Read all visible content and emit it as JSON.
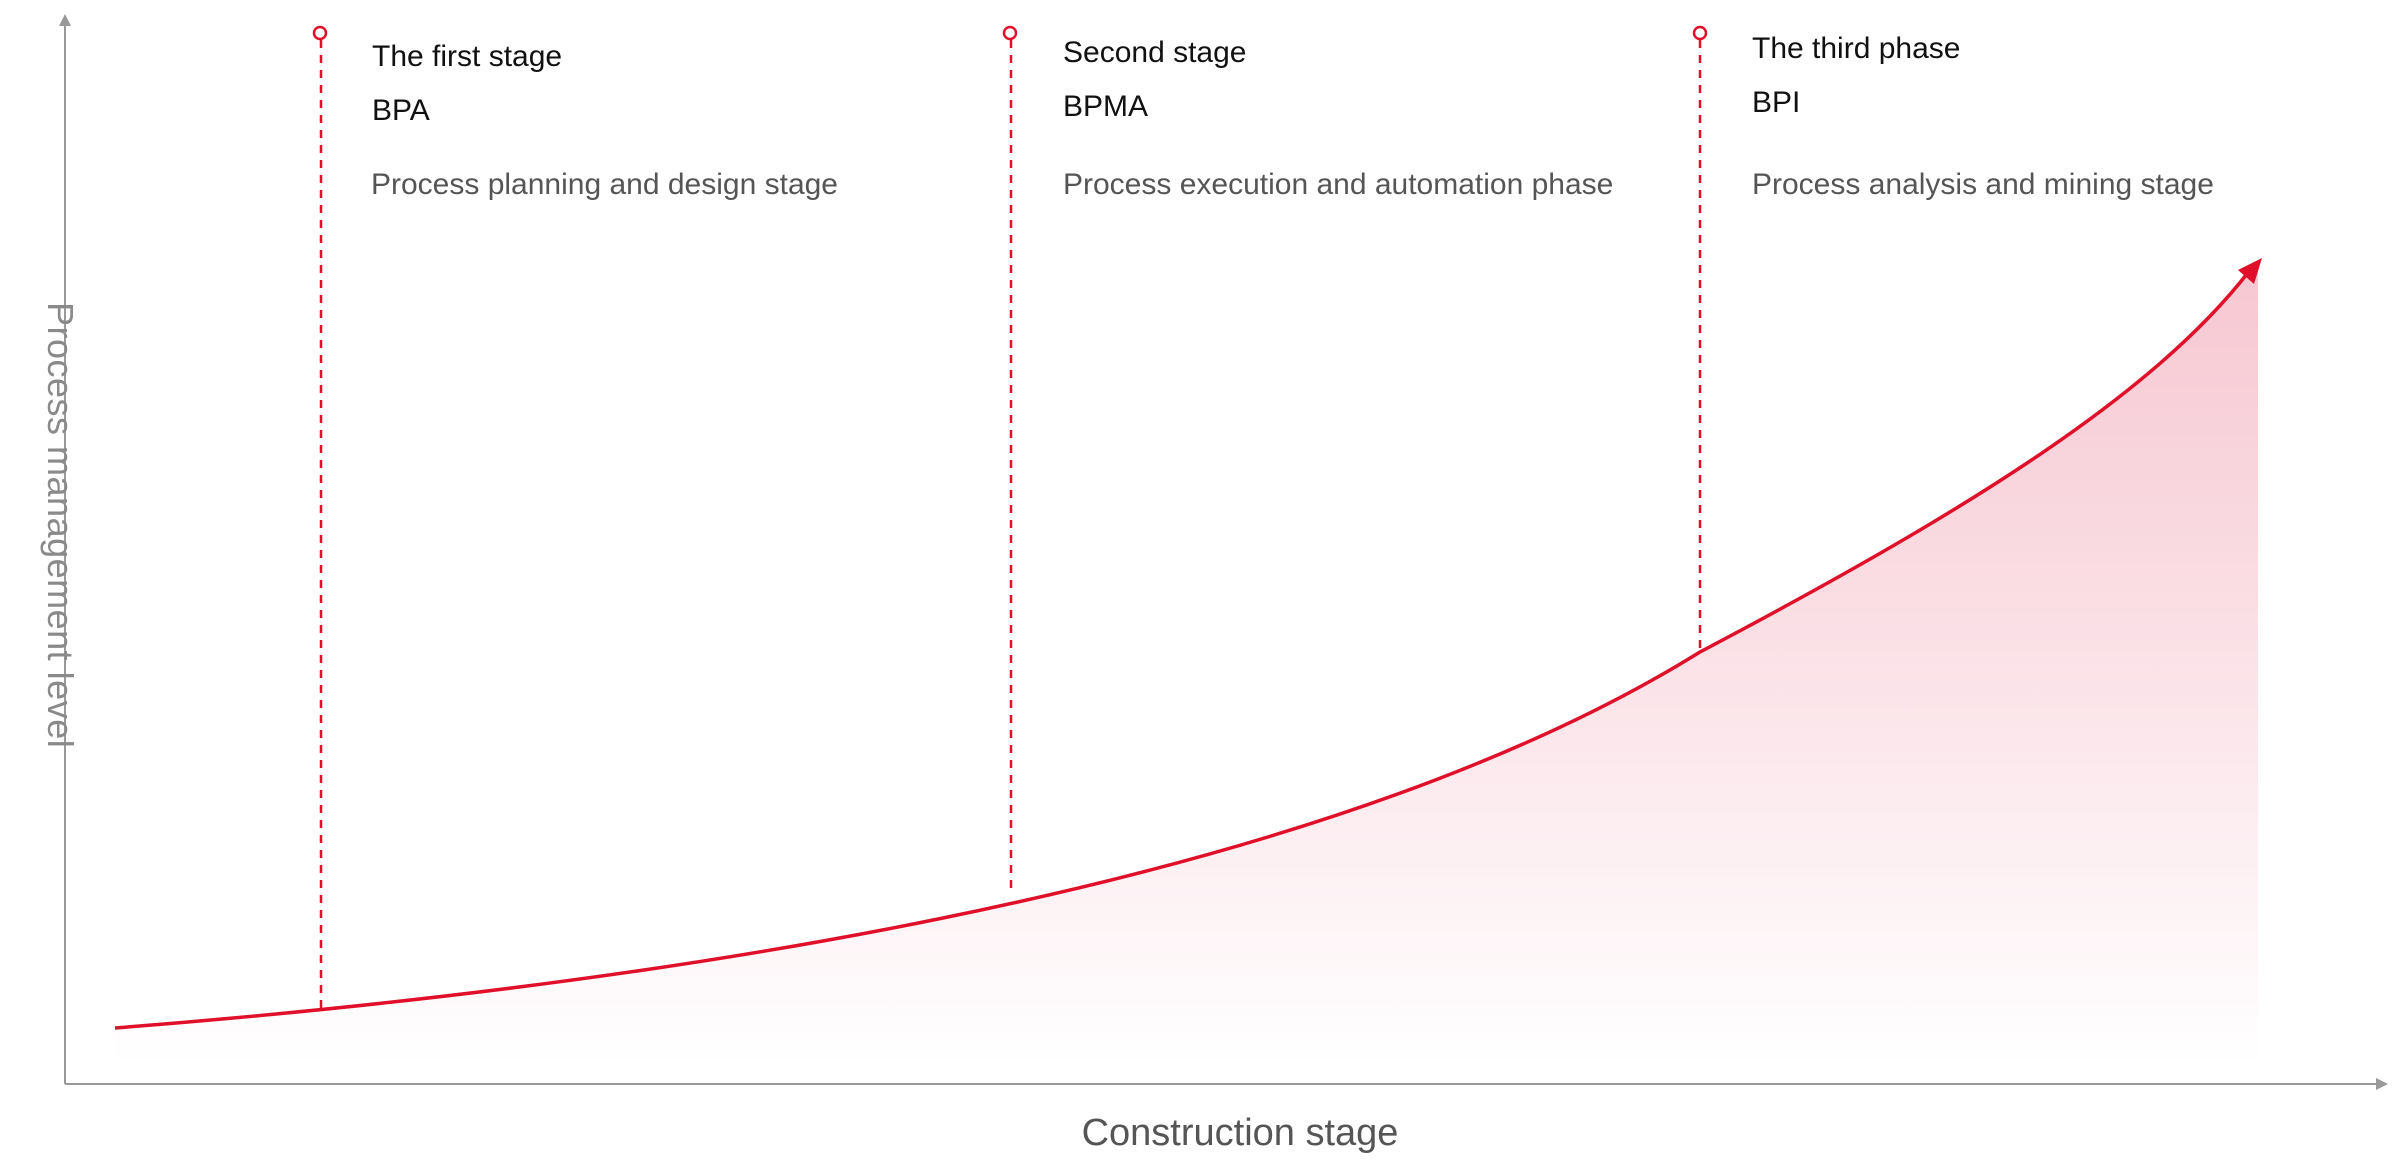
{
  "axes": {
    "x_label": "Construction stage",
    "y_label": "Process management level"
  },
  "stages": [
    {
      "name": "The first stage",
      "abbr": "BPA",
      "description": "Process planning and design stage"
    },
    {
      "name": "Second stage",
      "abbr": "BPMA",
      "description": "Process execution and automation phase"
    },
    {
      "name": "The third phase",
      "abbr": "BPI",
      "description": "Process analysis and mining stage"
    }
  ],
  "colors": {
    "accent": "#e0102a",
    "axis": "#999999",
    "fill_top": "#f6c4cf",
    "fill_bottom": "#ffffff"
  }
}
